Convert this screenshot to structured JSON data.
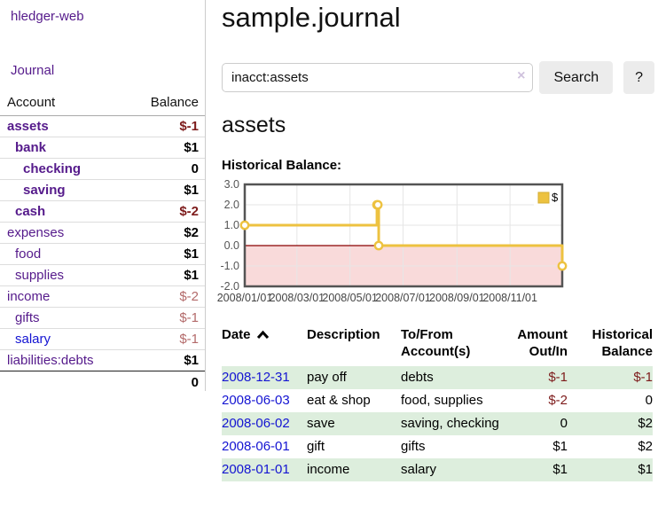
{
  "app": {
    "brand": "hledger-web",
    "nav_journal": "Journal"
  },
  "colors": {
    "link_visited": "#551a8b",
    "link_unvisited": "#1414d2",
    "negative_strong": "#7d1b1b",
    "negative_soft": "#b36a6a",
    "row_stripe_green": "#ddeedd",
    "chart_line": "#edc240"
  },
  "sidebar": {
    "header": {
      "account": "Account",
      "balance": "Balance"
    },
    "accounts": [
      {
        "name": "assets",
        "balance": "$-1",
        "indent": 0,
        "in_view": true,
        "link": "visited"
      },
      {
        "name": "bank",
        "balance": "$1",
        "indent": 1,
        "in_view": true,
        "link": "visited"
      },
      {
        "name": "checking",
        "balance": "0",
        "indent": 2,
        "in_view": true,
        "link": "visited"
      },
      {
        "name": "saving",
        "balance": "$1",
        "indent": 2,
        "in_view": true,
        "link": "visited"
      },
      {
        "name": "cash",
        "balance": "$-2",
        "indent": 1,
        "in_view": true,
        "link": "visited"
      },
      {
        "name": "expenses",
        "balance": "$2",
        "indent": 0,
        "in_view": false,
        "link": "visited"
      },
      {
        "name": "food",
        "balance": "$1",
        "indent": 1,
        "in_view": false,
        "link": "visited"
      },
      {
        "name": "supplies",
        "balance": "$1",
        "indent": 1,
        "in_view": false,
        "link": "visited"
      },
      {
        "name": "income",
        "balance": "$-2",
        "indent": 0,
        "in_view": false,
        "link": "visited"
      },
      {
        "name": "gifts",
        "balance": "$-1",
        "indent": 1,
        "in_view": false,
        "link": "visited"
      },
      {
        "name": "salary",
        "balance": "$-1",
        "indent": 1,
        "in_view": false,
        "link": "unvisited"
      },
      {
        "name": "liabilities:debts",
        "balance": "$1",
        "indent": 0,
        "in_view": false,
        "link": "visited"
      }
    ],
    "total": "0"
  },
  "main": {
    "title": "sample.journal",
    "account_heading": "assets",
    "chart_title": "Historical Balance:"
  },
  "search": {
    "value": "inacct:assets",
    "clear_icon": "×",
    "search_button": "Search",
    "help_button": "?"
  },
  "chart_data": {
    "type": "line",
    "step": true,
    "title": "Historical Balance",
    "xrange": [
      "2008-01-01",
      "2008-12-31"
    ],
    "ylim": [
      -2.0,
      3.0
    ],
    "yticks": [
      3.0,
      2.0,
      1.0,
      0.0,
      -1.0,
      -2.0
    ],
    "xticks": [
      {
        "date": "2008-01-01",
        "label": "2008/01/01"
      },
      {
        "date": "2008-03-01",
        "label": "2008/03/01"
      },
      {
        "date": "2008-05-01",
        "label": "2008/05/01"
      },
      {
        "date": "2008-07-01",
        "label": "2008/07/01"
      },
      {
        "date": "2008-09-01",
        "label": "2008/09/01"
      },
      {
        "date": "2008-11-01",
        "label": "2008/11/01"
      }
    ],
    "series": [
      {
        "name": "$",
        "color": "#edc240",
        "points": [
          [
            "2008-01-01",
            1
          ],
          [
            "2008-06-01",
            2
          ],
          [
            "2008-06-02",
            2
          ],
          [
            "2008-06-03",
            0
          ],
          [
            "2008-12-31",
            -1
          ]
        ]
      }
    ],
    "negative_fill": "#f9dada",
    "zero_line_color": "#8b0000",
    "grid": true,
    "legend_position": "top-right"
  },
  "register": {
    "columns": {
      "date": "Date",
      "description": "Description",
      "accounts": "To/From Account(s)",
      "amount": "Amount Out/In",
      "balance": "Historical Balance"
    },
    "rows": [
      {
        "date": "2008-12-31",
        "description": "pay off",
        "accounts": "debts",
        "amount": "$-1",
        "balance": "$-1"
      },
      {
        "date": "2008-06-03",
        "description": "eat & shop",
        "accounts": "food, supplies",
        "amount": "$-2",
        "balance": "0"
      },
      {
        "date": "2008-06-02",
        "description": "save",
        "accounts": "saving, checking",
        "amount": "0",
        "balance": "$2"
      },
      {
        "date": "2008-06-01",
        "description": "gift",
        "accounts": "gifts",
        "amount": "$1",
        "balance": "$2"
      },
      {
        "date": "2008-01-01",
        "description": "income",
        "accounts": "salary",
        "amount": "$1",
        "balance": "$1"
      }
    ]
  }
}
